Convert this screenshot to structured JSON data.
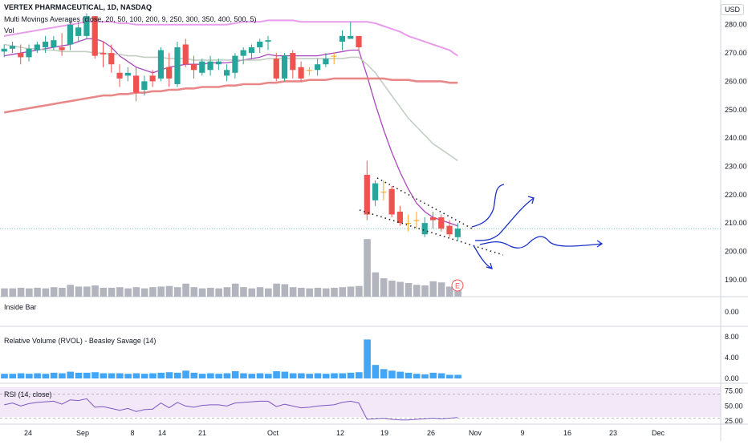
{
  "header": {
    "title": "VERTEX PHARMACEUTICAL, 1D, NASDAQ",
    "ma_legend": "Multi Movings Averages (close, 20, 50, 100, 200, 9, 250, 300, 350, 400, 500, 5)",
    "vol_legend": "Vol",
    "currency": "USD"
  },
  "panes": {
    "inside_bar": {
      "title": "Inside Bar",
      "ticks": [
        "0.00"
      ]
    },
    "rvol": {
      "title": "Relative Volume (RVOL) - Beasley Savage (14)",
      "ticks": [
        "8.00",
        "4.00",
        "0.00"
      ]
    },
    "rsi": {
      "title": "RSI (14, close)",
      "ticks": [
        "75.00",
        "50.00",
        "25.00"
      ]
    }
  },
  "earnings_marker": "E",
  "colors": {
    "up": "#26a69a",
    "down": "#ef5350",
    "neutral": "#f7a21b",
    "ma_violet": "#9c27b0",
    "ma_pink": "#e48ce8",
    "ma_grey": "#b9c7b9",
    "ma_red": "#e57373",
    "drawing": "#1a2fc9",
    "rvol": "#42a5f5",
    "rsi": "#7e57c2"
  },
  "chart_data": {
    "type": "candlestick",
    "title": "VERTEX PHARMACEUTICAL, 1D, NASDAQ",
    "price_axis": {
      "ticks": [
        "280.00",
        "270.00",
        "260.00",
        "250.00",
        "240.00",
        "230.00",
        "220.00",
        "210.00",
        "200.00",
        "190.00"
      ],
      "range": [
        184,
        287
      ]
    },
    "x_axis": {
      "ticks": [
        "24",
        "Sep",
        "8",
        "14",
        "21",
        "Oct",
        "12",
        "19",
        "26",
        "Nov",
        "9",
        "16",
        "23",
        "Dec"
      ]
    },
    "candles": [
      {
        "d": "Aug 21",
        "o": 270.5,
        "h": 273,
        "l": 268.5,
        "c": 271.5
      },
      {
        "d": "Aug 24",
        "o": 271.5,
        "h": 274,
        "l": 270,
        "c": 272.5
      },
      {
        "d": "Aug 25",
        "o": 270,
        "h": 273,
        "l": 266,
        "c": 268.5
      },
      {
        "d": "Aug 26",
        "o": 268.5,
        "h": 273,
        "l": 267,
        "c": 271.5
      },
      {
        "d": "Aug 27",
        "o": 271,
        "h": 274,
        "l": 270,
        "c": 273
      },
      {
        "d": "Aug 28",
        "o": 272,
        "h": 276,
        "l": 270,
        "c": 274
      },
      {
        "d": "Aug 31",
        "o": 272,
        "h": 276,
        "l": 271,
        "c": 274.5
      },
      {
        "d": "Sep 1",
        "o": 272,
        "h": 277,
        "l": 269,
        "c": 271
      },
      {
        "d": "Sep 2",
        "o": 273,
        "h": 282,
        "l": 271,
        "c": 280
      },
      {
        "d": "Sep 3",
        "o": 276,
        "h": 281,
        "l": 274,
        "c": 279
      },
      {
        "d": "Sep 4",
        "o": 276,
        "h": 284,
        "l": 275,
        "c": 283
      },
      {
        "d": "Sep 8",
        "o": 283,
        "h": 283,
        "l": 268,
        "c": 269
      },
      {
        "d": "Sep 9",
        "o": 270,
        "h": 274,
        "l": 265,
        "c": 269.5
      },
      {
        "d": "Sep 10",
        "o": 270,
        "h": 273,
        "l": 263,
        "c": 266
      },
      {
        "d": "Sep 11",
        "o": 263,
        "h": 266,
        "l": 258,
        "c": 261
      },
      {
        "d": "Sep 14",
        "o": 262,
        "h": 265,
        "l": 260,
        "c": 263
      },
      {
        "d": "Sep 15",
        "o": 262,
        "h": 265,
        "l": 253,
        "c": 256
      },
      {
        "d": "Sep 16",
        "o": 257,
        "h": 262,
        "l": 255,
        "c": 260
      },
      {
        "d": "Sep 17",
        "o": 262,
        "h": 264,
        "l": 258,
        "c": 260
      },
      {
        "d": "Sep 18",
        "o": 261,
        "h": 272,
        "l": 260,
        "c": 271
      },
      {
        "d": "Sep 21",
        "o": 265,
        "h": 270,
        "l": 258,
        "c": 261
      },
      {
        "d": "Sep 22",
        "o": 259,
        "h": 274,
        "l": 258,
        "c": 272
      },
      {
        "d": "Sep 23",
        "o": 273,
        "h": 275,
        "l": 265,
        "c": 266
      },
      {
        "d": "Sep 24",
        "o": 266,
        "h": 269,
        "l": 261,
        "c": 264
      },
      {
        "d": "Sep 25",
        "o": 263,
        "h": 268,
        "l": 262,
        "c": 267
      },
      {
        "d": "Sep 28",
        "o": 264,
        "h": 269,
        "l": 262,
        "c": 267
      },
      {
        "d": "Sep 29",
        "o": 266,
        "h": 268,
        "l": 264,
        "c": 267
      },
      {
        "d": "Sep 30",
        "o": 262,
        "h": 266,
        "l": 260,
        "c": 264
      },
      {
        "d": "Oct 1",
        "o": 263,
        "h": 270,
        "l": 261,
        "c": 269
      },
      {
        "d": "Oct 2",
        "o": 269,
        "h": 272,
        "l": 266,
        "c": 271
      },
      {
        "d": "Oct 5",
        "o": 270,
        "h": 273,
        "l": 268,
        "c": 272
      },
      {
        "d": "Oct 6",
        "o": 272,
        "h": 275,
        "l": 270,
        "c": 274
      },
      {
        "d": "Oct 7",
        "o": 274,
        "h": 276,
        "l": 271,
        "c": 274.5
      },
      {
        "d": "Oct 8",
        "o": 268,
        "h": 270,
        "l": 260,
        "c": 261
      },
      {
        "d": "Oct 9",
        "o": 261,
        "h": 270,
        "l": 260,
        "c": 269
      },
      {
        "d": "Oct 12",
        "o": 270,
        "h": 271,
        "l": 261,
        "c": 264
      },
      {
        "d": "Oct 13",
        "o": 265,
        "h": 267,
        "l": 260,
        "c": 261
      },
      {
        "d": "Oct 14",
        "o": 264,
        "h": 265,
        "l": 262,
        "c": 264
      },
      {
        "d": "Oct 15",
        "o": 264,
        "h": 268,
        "l": 262,
        "c": 266
      },
      {
        "d": "Oct 16",
        "o": 266,
        "h": 270,
        "l": 265,
        "c": 268
      },
      {
        "d": "Oct 19",
        "o": 269,
        "h": 270,
        "l": 266,
        "c": 269
      },
      {
        "d": "Oct 20",
        "o": 274,
        "h": 278,
        "l": 271,
        "c": 276
      },
      {
        "d": "Oct 21",
        "o": 275,
        "h": 281,
        "l": 275,
        "c": 276
      },
      {
        "d": "Oct 22",
        "o": 276,
        "h": 276,
        "l": 271,
        "c": 272
      },
      {
        "d": "Oct 26",
        "o": 227,
        "h": 232,
        "l": 211,
        "c": 213
      },
      {
        "d": "Oct 27",
        "o": 218,
        "h": 225,
        "l": 216,
        "c": 224
      },
      {
        "d": "Oct 28",
        "o": 221,
        "h": 225,
        "l": 218,
        "c": 221
      },
      {
        "d": "Oct 29",
        "o": 222,
        "h": 223,
        "l": 212,
        "c": 213
      },
      {
        "d": "Oct 30",
        "o": 214,
        "h": 216,
        "l": 209,
        "c": 210
      },
      {
        "d": "Nov 2",
        "o": 210,
        "h": 213,
        "l": 207,
        "c": 210
      },
      {
        "d": "Nov 3",
        "o": 211,
        "h": 214,
        "l": 208,
        "c": 211
      },
      {
        "d": "Nov 4",
        "o": 206,
        "h": 212,
        "l": 205,
        "c": 210
      },
      {
        "d": "Nov 5",
        "o": 212,
        "h": 214,
        "l": 208,
        "c": 211
      },
      {
        "d": "Nov 6",
        "o": 212,
        "h": 213,
        "l": 207,
        "c": 208
      },
      {
        "d": "Nov 9",
        "o": 209,
        "h": 211,
        "l": 205,
        "c": 206
      },
      {
        "d": "Nov 10",
        "o": 205,
        "h": 210,
        "l": 204,
        "c": 208
      }
    ],
    "volume": [
      14,
      14,
      15,
      14,
      15,
      14,
      16,
      15,
      20,
      17,
      17,
      19,
      15,
      15,
      16,
      14,
      16,
      14,
      16,
      17,
      18,
      16,
      22,
      16,
      14,
      15,
      14,
      16,
      22,
      16,
      14,
      16,
      14,
      22,
      21,
      16,
      15,
      14,
      15,
      14,
      15,
      16,
      17,
      18,
      97,
      41,
      31,
      27,
      25,
      23,
      20,
      19,
      26,
      24,
      17,
      17
    ],
    "rvol": [
      0.9,
      0.9,
      1.0,
      0.9,
      1.0,
      0.9,
      1.1,
      1.0,
      1.3,
      1.1,
      1.1,
      1.2,
      1.0,
      1.0,
      1.0,
      0.9,
      1.0,
      0.9,
      1.0,
      1.1,
      1.2,
      1.1,
      1.5,
      1.1,
      0.9,
      1.0,
      0.9,
      1.0,
      1.4,
      1.0,
      0.9,
      1.0,
      0.9,
      1.4,
      1.3,
      1.0,
      1.0,
      0.9,
      1.0,
      0.9,
      1.0,
      1.0,
      1.1,
      1.2,
      7.5,
      2.6,
      1.8,
      1.5,
      1.3,
      1.1,
      0.9,
      0.8,
      1.1,
      1.0,
      0.7,
      0.7
    ],
    "rsi": [
      52,
      55,
      50,
      54,
      56,
      57,
      58,
      53,
      60,
      59,
      62,
      48,
      49,
      46,
      43,
      46,
      41,
      44,
      45,
      55,
      47,
      56,
      50,
      48,
      51,
      52,
      52,
      50,
      55,
      56,
      57,
      58,
      58,
      49,
      53,
      50,
      47,
      48,
      50,
      51,
      52,
      56,
      58,
      55,
      28,
      29,
      30,
      28,
      27,
      27,
      28,
      29,
      30,
      29,
      30,
      31
    ],
    "moving_averages": [
      {
        "color": "violet",
        "values": [
          269,
          269.5,
          270,
          270.5,
          271,
          271.5,
          272,
          272.5,
          273,
          274,
          275,
          275,
          274,
          272,
          269,
          267,
          265,
          264,
          263,
          264,
          265,
          265.5,
          266,
          266,
          266,
          266.5,
          266.5,
          266.5,
          267,
          267.5,
          268,
          268.5,
          269.5,
          269,
          269,
          269,
          269,
          269,
          269,
          269.5,
          270,
          270.5,
          271,
          271,
          262,
          252,
          243,
          235,
          228,
          222,
          217,
          214,
          212,
          211,
          210,
          209
        ]
      },
      {
        "color": "pink",
        "values": [
          276,
          276.5,
          277,
          277.5,
          278,
          278.5,
          279,
          279.5,
          280,
          280.5,
          281,
          281,
          281,
          281,
          280.5,
          280.5,
          280,
          280,
          280,
          280,
          280,
          280,
          280,
          280,
          280,
          280,
          280,
          280,
          280.5,
          281,
          281,
          281,
          281.5,
          281.5,
          281.5,
          281.5,
          281,
          281,
          281,
          281,
          281,
          281,
          281,
          281,
          281,
          280.5,
          279.5,
          278.5,
          277.5,
          276,
          275,
          274,
          273,
          272,
          271,
          269
        ]
      },
      {
        "color": "grey",
        "values": [
          273,
          272.5,
          272,
          271.5,
          271.5,
          271,
          271,
          270.5,
          270.5,
          270.5,
          270.5,
          270,
          270,
          269.5,
          269.5,
          269,
          269,
          268.5,
          268.5,
          268.5,
          268,
          268,
          268,
          267.5,
          267.5,
          267.5,
          267.5,
          267.5,
          267.5,
          267.5,
          267.5,
          267.5,
          268,
          268,
          268,
          268,
          268,
          268,
          268,
          268,
          268,
          268,
          268.5,
          268.5,
          266,
          263,
          259,
          255,
          251,
          247,
          244,
          241,
          238,
          236,
          234,
          232
        ]
      },
      {
        "color": "red",
        "values": [
          249,
          249.5,
          250,
          250.5,
          251,
          251.5,
          252,
          252.5,
          253,
          253.5,
          254,
          254.5,
          255,
          255,
          255.5,
          255.5,
          256,
          256,
          256.5,
          256.5,
          257,
          257,
          257.5,
          257.5,
          258,
          258,
          258,
          258.5,
          258.5,
          259,
          259,
          259,
          259.5,
          259.5,
          260,
          260,
          260,
          260.5,
          260.5,
          260.5,
          261,
          261,
          261,
          261,
          261,
          261,
          261,
          260.5,
          260.5,
          260.5,
          260,
          260,
          260,
          260,
          259.5,
          259.5
        ]
      }
    ]
  }
}
